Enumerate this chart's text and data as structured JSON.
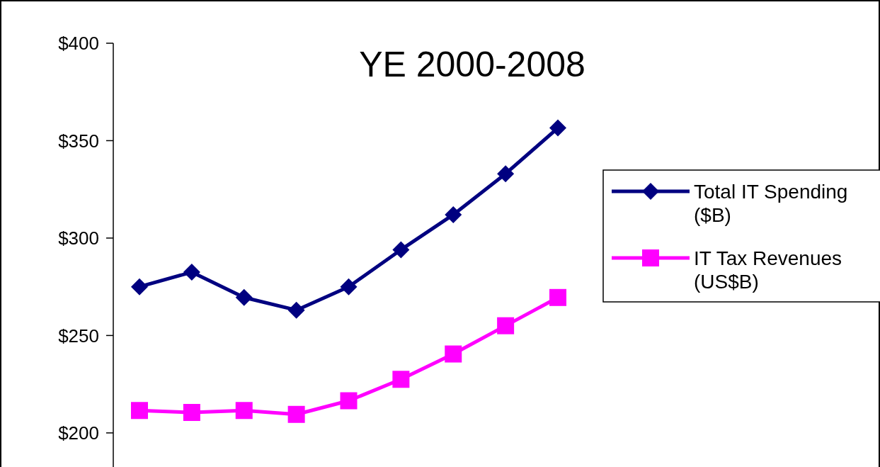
{
  "chart_data": {
    "type": "line",
    "title": "YE 2000-2008",
    "categories": [
      null,
      null,
      null,
      null,
      null,
      null,
      null,
      null,
      null
    ],
    "ylim": [
      182.5,
      400
    ],
    "yticks": [
      {
        "value": 200,
        "label": "$200"
      },
      {
        "value": 250,
        "label": "$250"
      },
      {
        "value": 300,
        "label": "$300"
      },
      {
        "value": 350,
        "label": "$350"
      },
      {
        "value": 400,
        "label": "$400"
      }
    ],
    "grid": false,
    "legend": "right",
    "series": [
      {
        "name": "Total IT Spending ($B)",
        "color": "#000080",
        "marker": "diamond",
        "values": [
          275,
          282.5,
          269.5,
          263,
          275,
          294,
          312,
          333,
          356.5
        ]
      },
      {
        "name": "IT Tax Revenues (US$B)",
        "color": "#ff00ff",
        "marker": "square",
        "values": [
          211.5,
          210.5,
          211.5,
          209.5,
          216.5,
          227.5,
          240.5,
          255,
          269.5
        ]
      }
    ]
  }
}
